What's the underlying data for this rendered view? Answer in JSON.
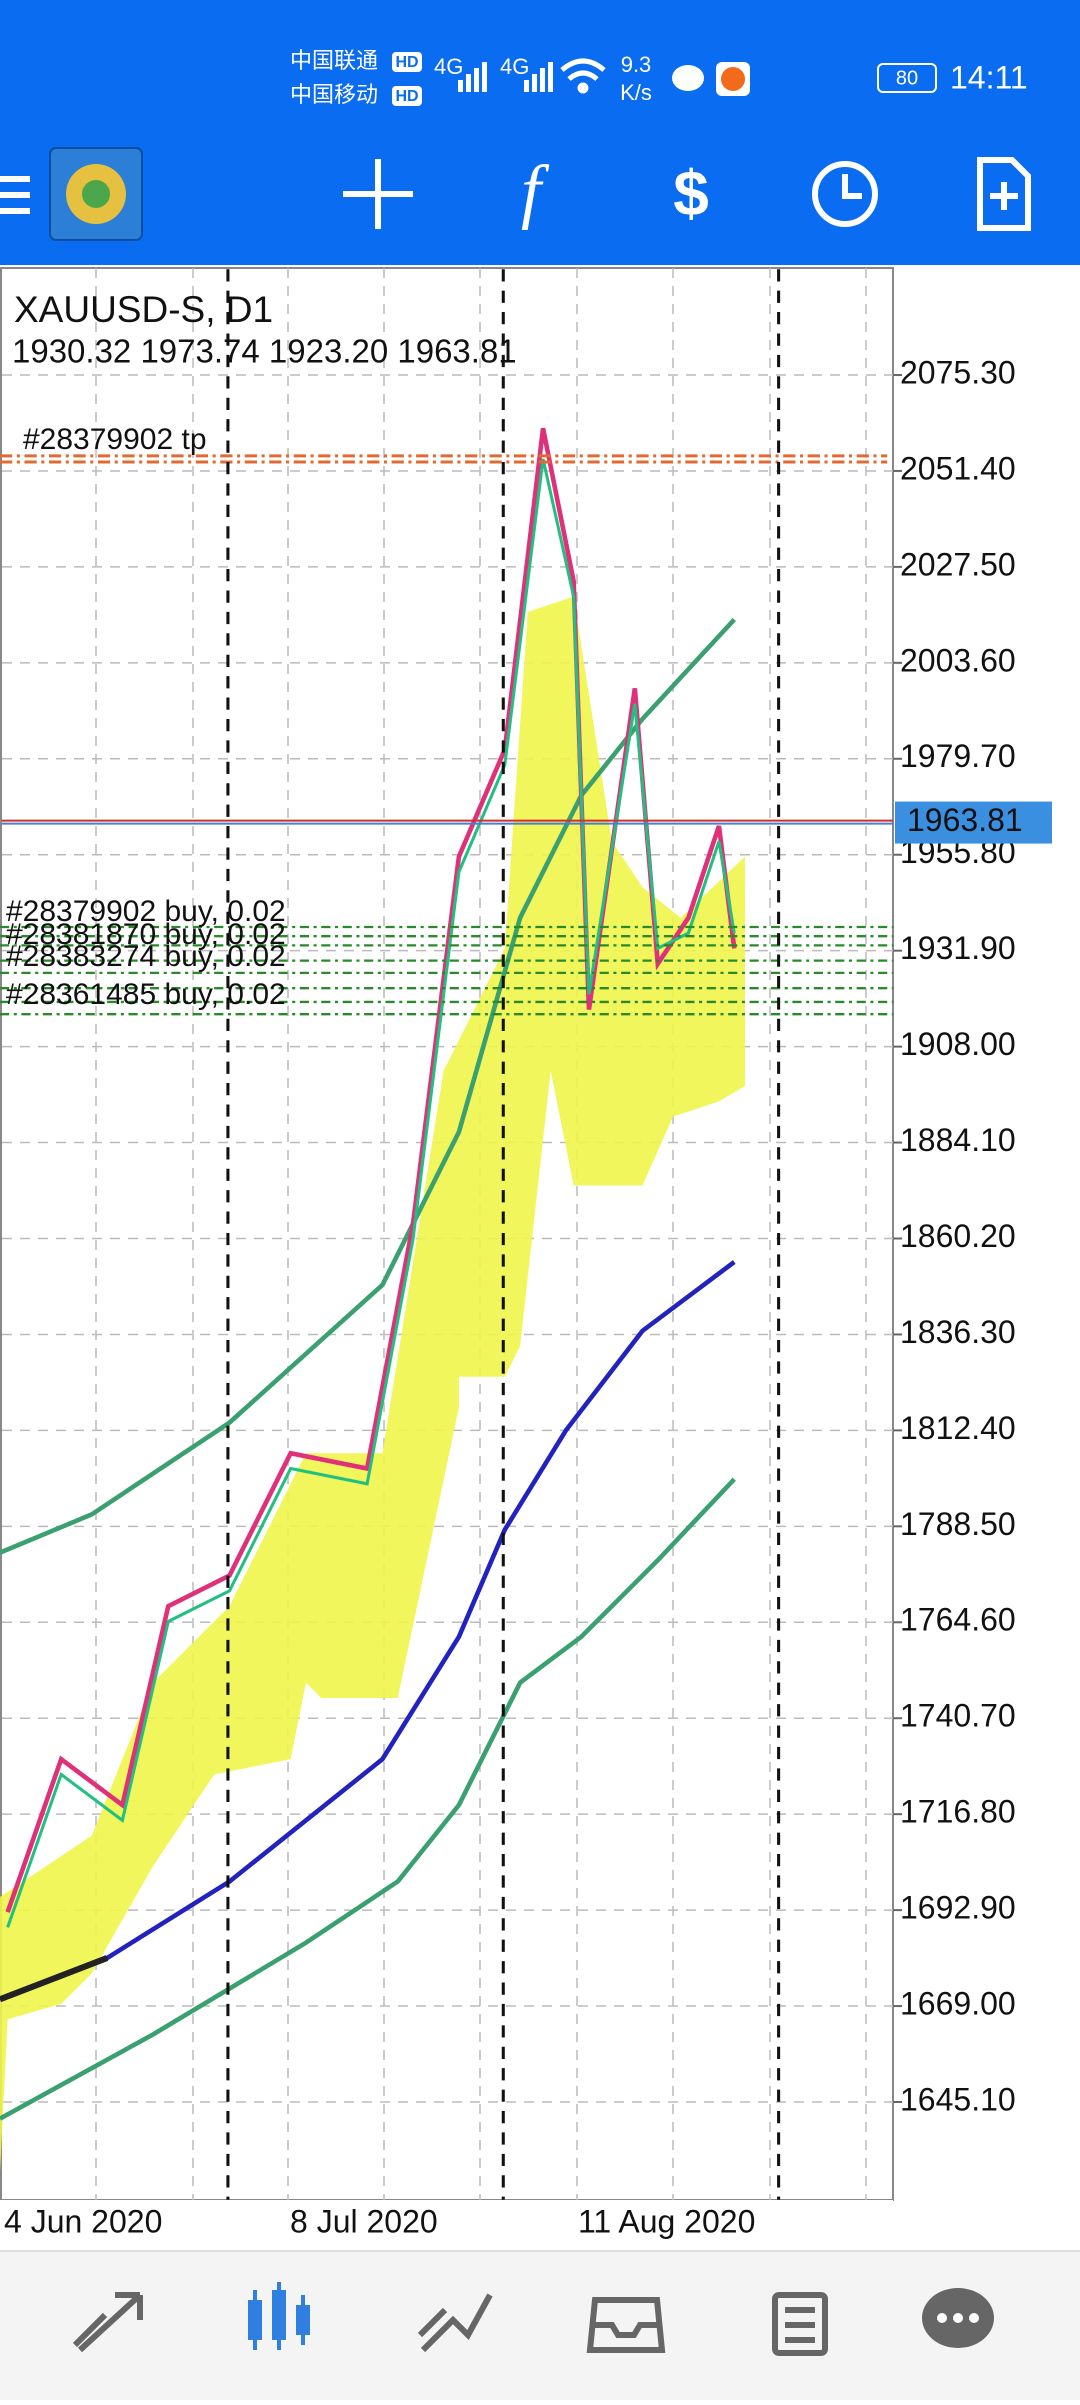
{
  "status_bar": {
    "carrier_1": "中国联通",
    "carrier_2": "中国移动",
    "hd_1": "HD",
    "hd_2": "HD",
    "net_1": "4G",
    "net_2": "4G",
    "speed": "9.3",
    "speed_unit": "K/s",
    "battery": "80",
    "time": "14:11"
  },
  "chart": {
    "symbol": "XAUUSD-S, D1",
    "ohlc": "1930.32 1973.74 1923.20 1963.81",
    "price_ticks": [
      {
        "value": 2075.3,
        "label": "2075.30"
      },
      {
        "value": 2051.4,
        "label": "2051.40"
      },
      {
        "value": 2027.5,
        "label": "2027.50"
      },
      {
        "value": 2003.6,
        "label": "2003.60"
      },
      {
        "value": 1979.7,
        "label": "1979.70"
      },
      {
        "value": 1955.8,
        "label": "1955.80"
      },
      {
        "value": 1931.9,
        "label": "1931.90"
      },
      {
        "value": 1908.0,
        "label": "1908.00"
      },
      {
        "value": 1884.1,
        "label": "1884.10"
      },
      {
        "value": 1860.2,
        "label": "1860.20"
      },
      {
        "value": 1836.3,
        "label": "1836.30"
      },
      {
        "value": 1812.4,
        "label": "1812.40"
      },
      {
        "value": 1788.5,
        "label": "1788.50"
      },
      {
        "value": 1764.6,
        "label": "1764.60"
      },
      {
        "value": 1740.7,
        "label": "1740.70"
      },
      {
        "value": 1716.8,
        "label": "1716.80"
      },
      {
        "value": 1692.9,
        "label": "1692.90"
      },
      {
        "value": 1669.0,
        "label": "1669.00"
      },
      {
        "value": 1645.1,
        "label": "1645.10"
      }
    ],
    "current_price": {
      "value": 1963.81,
      "label": "1963.81"
    },
    "tp_label": "#28379902 tp",
    "order_labels": [
      "#28379902 buy, 0.02",
      "#28381870 buy, 0.02",
      "#28383274 buy, 0.02",
      "#28361485 buy, 0.02"
    ],
    "date_labels": [
      "4 Jun 2020",
      "8 Jul 2020",
      "11 Aug 2020"
    ]
  }
}
